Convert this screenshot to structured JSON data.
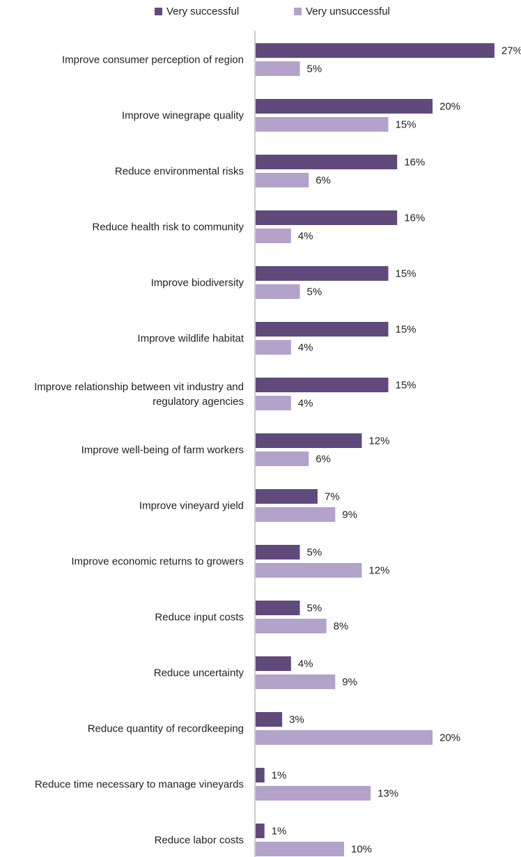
{
  "chart_data": {
    "type": "bar",
    "orientation": "horizontal",
    "categories": [
      "Improve consumer perception of region",
      "Improve winegrape quality",
      "Reduce environmental risks",
      "Reduce health risk to community",
      "Improve biodiversity",
      "Improve wildlife habitat",
      "Improve relationship between vit industry and regulatory agencies",
      "Improve well-being of farm workers",
      "Improve vineyard yield",
      "Improve economic returns to growers",
      "Reduce input costs",
      "Reduce uncertainty",
      "Reduce quantity of recordkeeping",
      "Reduce time necessary to manage vineyards",
      "Reduce labor costs"
    ],
    "category_lines": [
      [
        "Improve consumer perception of region"
      ],
      [
        "Improve winegrape quality"
      ],
      [
        "Reduce environmental risks"
      ],
      [
        "Reduce health risk to community"
      ],
      [
        "Improve biodiversity"
      ],
      [
        "Improve wildlife habitat"
      ],
      [
        "Improve relationship between vit industry and",
        "regulatory agencies"
      ],
      [
        "Improve well-being of farm workers"
      ],
      [
        "Improve vineyard yield"
      ],
      [
        "Improve economic returns to growers"
      ],
      [
        "Reduce input costs"
      ],
      [
        "Reduce uncertainty"
      ],
      [
        "Reduce quantity of recordkeeping"
      ],
      [
        "Reduce time necessary to manage vineyards"
      ],
      [
        "Reduce labor costs"
      ]
    ],
    "series": [
      {
        "name": "Very successful",
        "color": "#5f4a7b",
        "values": [
          27,
          20,
          16,
          16,
          15,
          15,
          15,
          12,
          7,
          5,
          5,
          4,
          3,
          1,
          1
        ]
      },
      {
        "name": "Very unsuccessful",
        "color": "#b3a2c9",
        "values": [
          5,
          15,
          6,
          4,
          5,
          4,
          4,
          6,
          9,
          12,
          8,
          9,
          20,
          13,
          10
        ]
      }
    ],
    "value_suffix": "%",
    "xlim": [
      0,
      30
    ],
    "grid": false,
    "legend_position": "top"
  }
}
